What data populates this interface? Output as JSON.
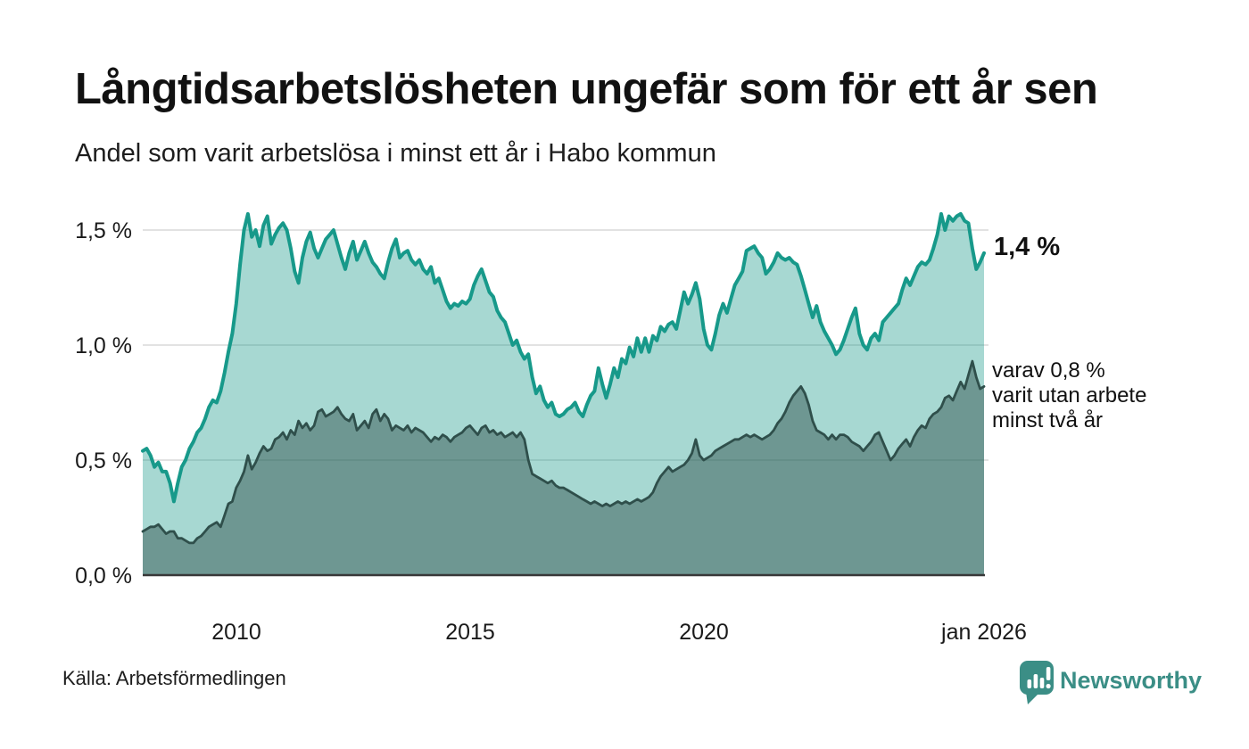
{
  "header": {
    "title": "Långtidsarbetslösheten ungefär som för ett år sen",
    "subtitle": "Andel som varit arbetslösa i minst ett år i Habo kommun"
  },
  "annotations": {
    "latest_primary": "1,4 %",
    "secondary": [
      "varav 0,8 %",
      "varit utan arbete",
      "minst två år"
    ]
  },
  "footer": {
    "source": "Källa: Arbetsförmedlingen",
    "brand": "Newsworthy"
  },
  "colors": {
    "primary_line": "#17998a",
    "primary_fill": "#17998a",
    "secondary_line": "#2f4f4b",
    "secondary_fill": "#2f4f4b",
    "grid": "#d8d8d8",
    "axis": "#383838",
    "brand": "#3b8e86",
    "text": "#111111"
  },
  "chart_data": {
    "type": "area",
    "title": "Andel som varit arbetslösa i minst ett år i Habo kommun",
    "x_start": "2008-01",
    "x_end": "2026-01",
    "x_interval": "monthly",
    "x_tick_labels": [
      "2010",
      "2015",
      "2020",
      "jan 2026"
    ],
    "y_tick_labels_top_down": [
      "1,5 %",
      "1,0 %",
      "0,5 %",
      "0,0 %"
    ],
    "ylim": [
      0,
      1.61
    ],
    "grid": true,
    "legend_position": "annotations-right",
    "unit": "percent",
    "latest_values": {
      "minst_ett_ar": 1.4,
      "minst_tva_ar": 0.8
    },
    "series": [
      {
        "name": "Andel arbetslösa minst ett år",
        "line_color": "#17998a",
        "fill_color": "#17998a",
        "fill_opacity": 0.38,
        "line_width": 4,
        "values": [
          0.54,
          0.55,
          0.52,
          0.47,
          0.49,
          0.45,
          0.45,
          0.4,
          0.32,
          0.4,
          0.47,
          0.5,
          0.55,
          0.58,
          0.62,
          0.64,
          0.68,
          0.73,
          0.76,
          0.75,
          0.8,
          0.88,
          0.97,
          1.05,
          1.18,
          1.35,
          1.5,
          1.57,
          1.47,
          1.5,
          1.43,
          1.52,
          1.56,
          1.44,
          1.48,
          1.51,
          1.53,
          1.5,
          1.42,
          1.32,
          1.27,
          1.38,
          1.45,
          1.49,
          1.42,
          1.38,
          1.42,
          1.46,
          1.48,
          1.5,
          1.44,
          1.38,
          1.33,
          1.4,
          1.45,
          1.37,
          1.41,
          1.45,
          1.4,
          1.36,
          1.34,
          1.31,
          1.29,
          1.36,
          1.42,
          1.46,
          1.38,
          1.4,
          1.41,
          1.37,
          1.35,
          1.37,
          1.33,
          1.31,
          1.34,
          1.27,
          1.29,
          1.24,
          1.19,
          1.16,
          1.18,
          1.17,
          1.19,
          1.18,
          1.2,
          1.26,
          1.3,
          1.33,
          1.28,
          1.23,
          1.21,
          1.15,
          1.12,
          1.1,
          1.05,
          1.0,
          1.02,
          0.97,
          0.94,
          0.96,
          0.86,
          0.79,
          0.82,
          0.76,
          0.73,
          0.75,
          0.7,
          0.69,
          0.7,
          0.72,
          0.73,
          0.75,
          0.71,
          0.69,
          0.74,
          0.78,
          0.8,
          0.9,
          0.83,
          0.77,
          0.83,
          0.9,
          0.86,
          0.94,
          0.92,
          0.99,
          0.95,
          1.03,
          0.97,
          1.03,
          0.97,
          1.04,
          1.02,
          1.08,
          1.06,
          1.09,
          1.1,
          1.07,
          1.15,
          1.23,
          1.18,
          1.22,
          1.27,
          1.2,
          1.07,
          1.0,
          0.98,
          1.05,
          1.13,
          1.18,
          1.14,
          1.2,
          1.26,
          1.29,
          1.32,
          1.41,
          1.42,
          1.43,
          1.4,
          1.38,
          1.31,
          1.33,
          1.36,
          1.4,
          1.38,
          1.37,
          1.38,
          1.36,
          1.35,
          1.3,
          1.24,
          1.18,
          1.12,
          1.17,
          1.1,
          1.06,
          1.03,
          1.0,
          0.96,
          0.98,
          1.02,
          1.07,
          1.12,
          1.16,
          1.05,
          1.0,
          0.98,
          1.03,
          1.05,
          1.02,
          1.1,
          1.12,
          1.14,
          1.16,
          1.18,
          1.24,
          1.29,
          1.26,
          1.3,
          1.34,
          1.36,
          1.35,
          1.37,
          1.42,
          1.48,
          1.57,
          1.5,
          1.56,
          1.54,
          1.56,
          1.57,
          1.54,
          1.53,
          1.42,
          1.33,
          1.36,
          1.4
        ]
      },
      {
        "name": "varav utan arbete minst två år",
        "line_color": "#2f4f4b",
        "fill_color": "#2f4f4b",
        "fill_opacity": 0.47,
        "line_width": 2.8,
        "values": [
          0.19,
          0.2,
          0.21,
          0.21,
          0.22,
          0.2,
          0.18,
          0.19,
          0.19,
          0.16,
          0.16,
          0.15,
          0.14,
          0.14,
          0.16,
          0.17,
          0.19,
          0.21,
          0.22,
          0.23,
          0.21,
          0.26,
          0.31,
          0.32,
          0.38,
          0.41,
          0.45,
          0.52,
          0.46,
          0.49,
          0.53,
          0.56,
          0.54,
          0.55,
          0.59,
          0.6,
          0.62,
          0.59,
          0.63,
          0.61,
          0.67,
          0.64,
          0.66,
          0.63,
          0.65,
          0.71,
          0.72,
          0.69,
          0.7,
          0.71,
          0.73,
          0.7,
          0.68,
          0.67,
          0.7,
          0.63,
          0.65,
          0.67,
          0.64,
          0.7,
          0.72,
          0.67,
          0.7,
          0.68,
          0.63,
          0.65,
          0.64,
          0.63,
          0.65,
          0.62,
          0.64,
          0.63,
          0.62,
          0.6,
          0.58,
          0.6,
          0.59,
          0.61,
          0.6,
          0.58,
          0.6,
          0.61,
          0.62,
          0.64,
          0.65,
          0.63,
          0.61,
          0.64,
          0.65,
          0.62,
          0.63,
          0.61,
          0.62,
          0.6,
          0.61,
          0.62,
          0.6,
          0.62,
          0.59,
          0.5,
          0.44,
          0.43,
          0.42,
          0.41,
          0.4,
          0.41,
          0.39,
          0.38,
          0.38,
          0.37,
          0.36,
          0.35,
          0.34,
          0.33,
          0.32,
          0.31,
          0.32,
          0.31,
          0.3,
          0.31,
          0.3,
          0.31,
          0.32,
          0.31,
          0.32,
          0.31,
          0.32,
          0.33,
          0.32,
          0.33,
          0.34,
          0.36,
          0.4,
          0.43,
          0.45,
          0.47,
          0.45,
          0.46,
          0.47,
          0.48,
          0.5,
          0.53,
          0.59,
          0.52,
          0.5,
          0.51,
          0.52,
          0.54,
          0.55,
          0.56,
          0.57,
          0.58,
          0.59,
          0.59,
          0.6,
          0.61,
          0.6,
          0.61,
          0.6,
          0.59,
          0.6,
          0.61,
          0.63,
          0.66,
          0.68,
          0.71,
          0.75,
          0.78,
          0.8,
          0.82,
          0.79,
          0.74,
          0.67,
          0.63,
          0.62,
          0.61,
          0.59,
          0.61,
          0.59,
          0.61,
          0.61,
          0.6,
          0.58,
          0.57,
          0.56,
          0.54,
          0.56,
          0.58,
          0.61,
          0.62,
          0.58,
          0.54,
          0.5,
          0.52,
          0.55,
          0.57,
          0.59,
          0.56,
          0.6,
          0.63,
          0.65,
          0.64,
          0.68,
          0.7,
          0.71,
          0.73,
          0.77,
          0.78,
          0.76,
          0.8,
          0.84,
          0.81,
          0.87,
          0.93,
          0.86,
          0.81,
          0.82
        ]
      }
    ]
  }
}
